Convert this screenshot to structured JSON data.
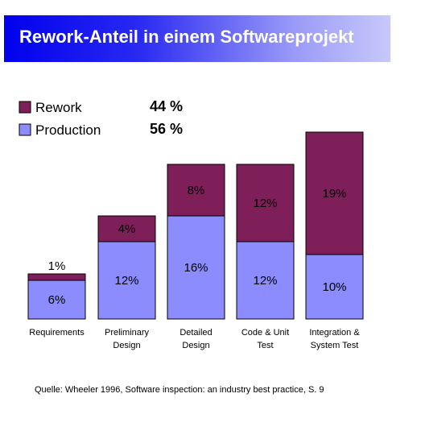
{
  "title": "Rework-Anteil in einem Softwareprojekt",
  "legend": [
    {
      "key": "rework",
      "label": "Rework",
      "value": "44 %",
      "color": "#7f1f5a"
    },
    {
      "key": "production",
      "label": "Production",
      "value": "56 %",
      "color": "#8c8cff"
    }
  ],
  "chart_data": {
    "type": "bar",
    "stacked": true,
    "categories": [
      [
        "Requirements"
      ],
      [
        "Preliminary",
        "Design"
      ],
      [
        "Detailed",
        "Design"
      ],
      [
        "Code & Unit",
        "Test"
      ],
      [
        "Integration &",
        "System Test"
      ]
    ],
    "series": [
      {
        "name": "Production",
        "values": [
          6,
          12,
          16,
          12,
          10
        ],
        "labels": [
          "6%",
          "12%",
          "16%",
          "12%",
          "10%"
        ],
        "color": "#8c8cff"
      },
      {
        "name": "Rework",
        "values": [
          1,
          4,
          8,
          12,
          19
        ],
        "labels": [
          "1%",
          "4%",
          "8%",
          "12%",
          "19%"
        ],
        "color": "#7f1f5a"
      }
    ],
    "ylim": [
      0,
      29
    ],
    "grid": false,
    "legend_position": "top-left"
  },
  "source": "Quelle: Wheeler 1996, Software inspection: an industry best practice, S. 9"
}
